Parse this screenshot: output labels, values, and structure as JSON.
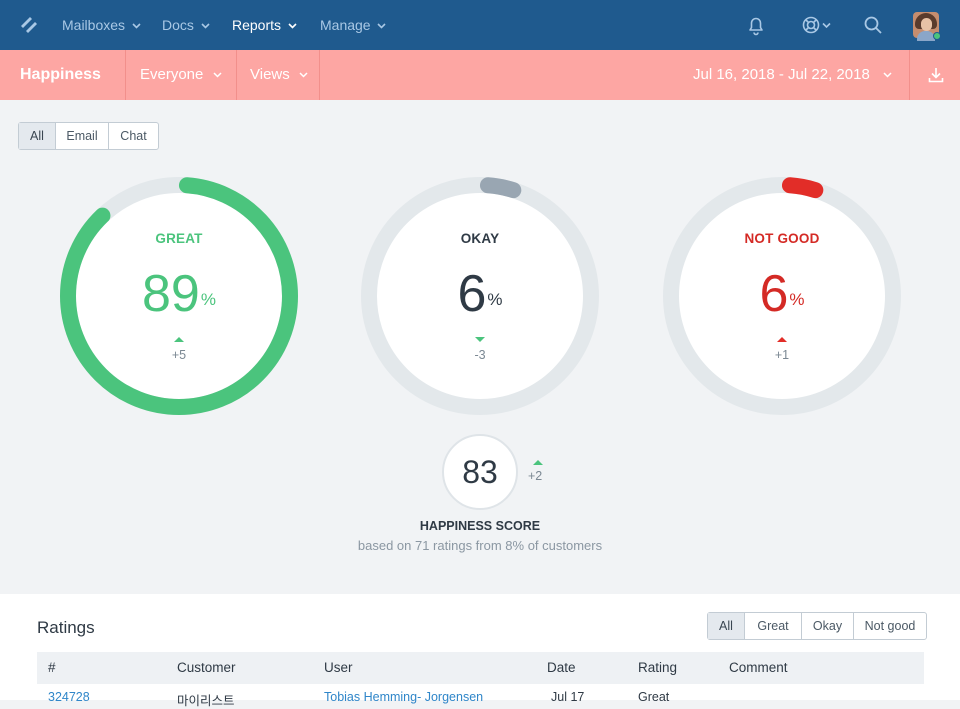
{
  "nav": {
    "items": [
      {
        "label": "Mailboxes",
        "active": false
      },
      {
        "label": "Docs",
        "active": false
      },
      {
        "label": "Reports",
        "active": true
      },
      {
        "label": "Manage",
        "active": false
      }
    ],
    "icons": [
      "bell-icon",
      "help-lifebuoy-icon",
      "search-icon"
    ]
  },
  "subheader": {
    "title": "Happiness",
    "filter": "Everyone",
    "views": "Views",
    "date_range": "Jul 16, 2018 - Jul 22, 2018"
  },
  "channel_tabs": {
    "options": [
      "All",
      "Email",
      "Chat"
    ],
    "selected": "All"
  },
  "gauges": [
    {
      "label": "GREAT",
      "value": "89",
      "unit": "%",
      "delta": "+5",
      "direction": "up",
      "fraction": 0.89,
      "color": "#4bc47d",
      "label_color": "#4bc47d",
      "value_color": "#4bc47d",
      "arrow_color": "#4bc47d"
    },
    {
      "label": "OKAY",
      "value": "6",
      "unit": "%",
      "delta": "-3",
      "direction": "down",
      "fraction": 0.06,
      "color": "#99a6b2",
      "label_color": "#2f3a45",
      "value_color": "#2f3a45",
      "arrow_color": "#4bc47d"
    },
    {
      "label": "NOT GOOD",
      "value": "6",
      "unit": "%",
      "delta": "+1",
      "direction": "up",
      "fraction": 0.06,
      "color": "#e22d28",
      "label_color": "#d42a25",
      "value_color": "#d42a25",
      "arrow_color": "#e22d28"
    }
  ],
  "score": {
    "value": "83",
    "delta": "+2",
    "title": "HAPPINESS SCORE",
    "subtitle": "based on 71 ratings from 8% of customers"
  },
  "ratings": {
    "title": "Ratings",
    "filters": [
      "All",
      "Great",
      "Okay",
      "Not good"
    ],
    "selected_filter": "All",
    "columns": [
      "#",
      "Customer",
      "User",
      "Date",
      "Rating",
      "Comment"
    ],
    "rows": [
      {
        "id": "324728",
        "customer": "마이리스트",
        "user": "Tobias Hemming- Jorgensen",
        "date": "Jul 17",
        "rating": "Great",
        "comment": ""
      }
    ]
  },
  "colors": {
    "nav_bg": "#1f5a8e",
    "subheader_bg": "#fda6a3",
    "track": "#e3e8eb"
  }
}
